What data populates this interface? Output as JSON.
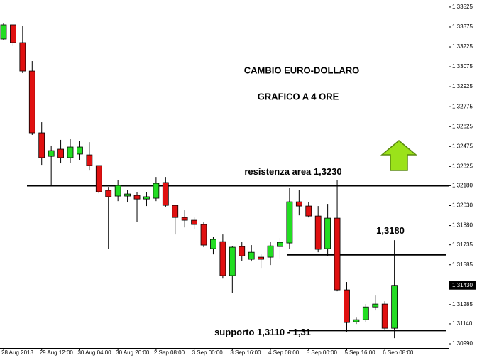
{
  "chart_data": {
    "type": "candlestick",
    "title": "CAMBIO EURO-DOLLARO",
    "subtitle": "GRAFICO A 4 ORE",
    "categories": [
      "28 Aug 2013",
      null,
      null,
      null,
      "29 Aug 12:00",
      null,
      null,
      null,
      "30 Aug 04:00",
      null,
      null,
      null,
      "30 Aug 20:00",
      null,
      null,
      null,
      "2 Sep 08:00",
      null,
      null,
      null,
      "3 Sep 00:00",
      null,
      null,
      null,
      "3 Sep 16:00",
      null,
      null,
      null,
      "4 Sep 08:00",
      null,
      null,
      null,
      "5 Sep 00:00",
      null,
      null,
      null,
      "5 Sep 16:00",
      null,
      null,
      null,
      "6 Sep 08:00",
      null
    ],
    "open": [
      1.33284,
      1.33391,
      1.33257,
      1.33043,
      1.32578,
      1.32401,
      1.32455,
      1.32391,
      1.32418,
      1.32412,
      1.32332,
      1.32145,
      1.32102,
      1.32102,
      1.32107,
      1.3208,
      1.32086,
      1.32204,
      1.32032,
      1.31941,
      1.3192,
      1.31888,
      1.31706,
      1.31759,
      1.31503,
      1.31722,
      1.31626,
      1.31642,
      1.31642,
      1.31722,
      1.31749,
      1.32059,
      1.32027,
      1.31952,
      1.31706,
      1.31936,
      1.31396,
      1.31155,
      1.31171,
      1.31267,
      1.31289,
      1.31107
    ],
    "high": [
      1.33402,
      1.33391,
      1.33381,
      1.33118,
      1.32658,
      1.32482,
      1.32525,
      1.3253,
      1.32519,
      1.32508,
      1.32332,
      1.32171,
      1.32225,
      1.32145,
      1.32134,
      1.32134,
      1.32246,
      1.32246,
      1.32038,
      1.31995,
      1.31941,
      1.31904,
      1.31797,
      1.31813,
      1.31727,
      1.31759,
      1.31733,
      1.31663,
      1.31759,
      1.31786,
      1.32161,
      1.3215,
      1.32059,
      1.32027,
      1.32043,
      1.3222,
      1.31455,
      1.31192,
      1.31289,
      1.31353,
      1.3131,
      1.3177
    ],
    "low": [
      1.33274,
      1.33231,
      1.33027,
      1.32562,
      1.32337,
      1.32177,
      1.32348,
      1.32353,
      1.32375,
      1.32294,
      1.32123,
      1.31706,
      1.32064,
      1.32054,
      1.31909,
      1.32027,
      1.32064,
      1.32022,
      1.31813,
      1.31866,
      1.31856,
      1.31717,
      1.31663,
      1.31481,
      1.31374,
      1.31615,
      1.3161,
      1.31556,
      1.31583,
      1.31626,
      1.31706,
      1.31957,
      1.31941,
      1.31679,
      1.31652,
      1.31385,
      1.3108,
      1.31139,
      1.31155,
      1.31241,
      1.31091,
      1.31032
    ],
    "close": [
      1.33391,
      1.33257,
      1.33043,
      1.32578,
      1.32391,
      1.32444,
      1.32391,
      1.32471,
      1.32471,
      1.32332,
      1.32134,
      1.32097,
      1.32182,
      1.32118,
      1.3208,
      1.32097,
      1.32198,
      1.32032,
      1.31941,
      1.3192,
      1.31888,
      1.31733,
      1.31776,
      1.31503,
      1.31717,
      1.31652,
      1.31679,
      1.31626,
      1.31727,
      1.31754,
      1.32059,
      1.32027,
      1.31952,
      1.31701,
      1.31936,
      1.31396,
      1.3115,
      1.31171,
      1.31267,
      1.31289,
      1.31107,
      1.3143
    ],
    "up_color": "#22dd22",
    "down_color": "#e01010",
    "ylim": [
      1.30958,
      1.33578
    ],
    "yticks": [
      1.33525,
      1.33375,
      1.33225,
      1.33075,
      1.32925,
      1.32775,
      1.32625,
      1.32475,
      1.32325,
      {
        "value": 1.3218,
        "label": "1.32180"
      },
      {
        "value": 1.3203,
        "label": "1.32030"
      },
      {
        "value": 1.3188,
        "label": "1.31880"
      },
      1.31735,
      1.31585,
      1.31285,
      {
        "value": 1.3114,
        "label": "1.31140"
      },
      {
        "value": 1.3099,
        "label": "1.30990"
      }
    ],
    "last_price": {
      "value": 1.3143,
      "label": "1.31430"
    },
    "levels": [
      {
        "value": 1.3218,
        "label": "resistenza area 1,3230"
      },
      {
        "value": 1.3166,
        "label": "1,3180"
      },
      {
        "value": 1.3109,
        "label": "supporto 1,3110 - 1,31"
      }
    ]
  }
}
